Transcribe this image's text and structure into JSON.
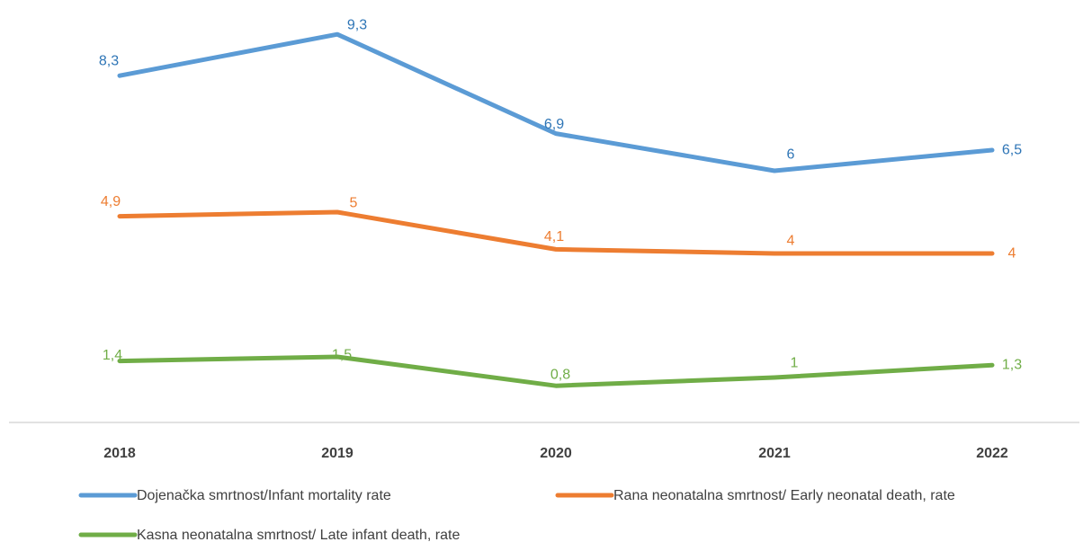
{
  "chart_data": {
    "type": "line",
    "categories": [
      "2018",
      "2019",
      "2020",
      "2021",
      "2022"
    ],
    "series": [
      {
        "name": "Dojenačka smrtnost/Infant mortality rate",
        "values": [
          8.3,
          9.3,
          6.9,
          6,
          6.5
        ],
        "labels": [
          "8,3",
          "9,3",
          "6,9",
          "6",
          "6,5"
        ],
        "color": "#5B9BD5",
        "label_color": "#2E75B6"
      },
      {
        "name": "Rana neonatalna smrtnost/ Early neonatal death, rate",
        "values": [
          4.9,
          5,
          4.1,
          4,
          4
        ],
        "labels": [
          "4,9",
          "5",
          "4,1",
          "4",
          "4"
        ],
        "color": "#ED7D31",
        "label_color": "#ED7D31"
      },
      {
        "name": "Kasna neonatalna smrtnost/ Late infant death, rate",
        "values": [
          1.4,
          1.5,
          0.8,
          1,
          1.3
        ],
        "labels": [
          "1,4",
          "1,5",
          "0,8",
          "1",
          "1,3"
        ],
        "color": "#70AD47",
        "label_color": "#70AD47"
      }
    ],
    "ylim": [
      0,
      10
    ],
    "grid": false,
    "legend_position": "bottom",
    "title": "",
    "xlabel": "",
    "ylabel": ""
  }
}
